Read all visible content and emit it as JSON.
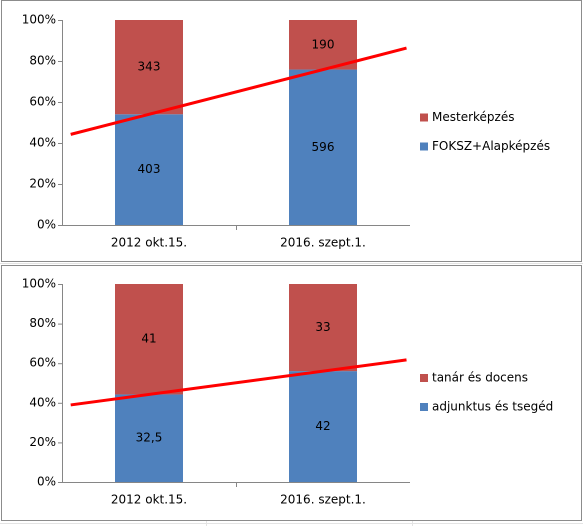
{
  "chart_data": [
    {
      "type": "bar",
      "stacking": "percent",
      "categories": [
        "2012 okt.15.",
        "2016. szept.1."
      ],
      "series": [
        {
          "name": "FOKSZ+Alapképzés",
          "color": "#4f81bd",
          "values": [
            403,
            596
          ]
        },
        {
          "name": "Mesterképzés",
          "color": "#c0504d",
          "values": [
            343,
            190
          ]
        }
      ],
      "ylim": [
        0,
        100
      ],
      "yticks": [
        {
          "value": 0,
          "label": "0%"
        },
        {
          "value": 20,
          "label": "20%"
        },
        {
          "value": 40,
          "label": "40%"
        },
        {
          "value": 60,
          "label": "60%"
        },
        {
          "value": 80,
          "label": "80%"
        },
        {
          "value": 100,
          "label": "100%"
        }
      ],
      "trendline": {
        "series": 0,
        "color": "#ff0000"
      },
      "legend": "right"
    },
    {
      "type": "bar",
      "stacking": "percent",
      "categories": [
        "2012 okt.15.",
        "2016. szept.1."
      ],
      "series": [
        {
          "name": "adjunktus és tsegéd",
          "color": "#4f81bd",
          "values": [
            32.5,
            42
          ],
          "value_labels": [
            "32,5",
            "42"
          ]
        },
        {
          "name": "tanár és docens",
          "color": "#c0504d",
          "values": [
            41,
            33
          ]
        }
      ],
      "ylim": [
        0,
        100
      ],
      "yticks": [
        {
          "value": 0,
          "label": "0%"
        },
        {
          "value": 20,
          "label": "20%"
        },
        {
          "value": 40,
          "label": "40%"
        },
        {
          "value": 60,
          "label": "60%"
        },
        {
          "value": 80,
          "label": "80%"
        },
        {
          "value": 100,
          "label": "100%"
        }
      ],
      "trendline": {
        "series": 0,
        "color": "#ff0000"
      },
      "legend": "right"
    }
  ]
}
